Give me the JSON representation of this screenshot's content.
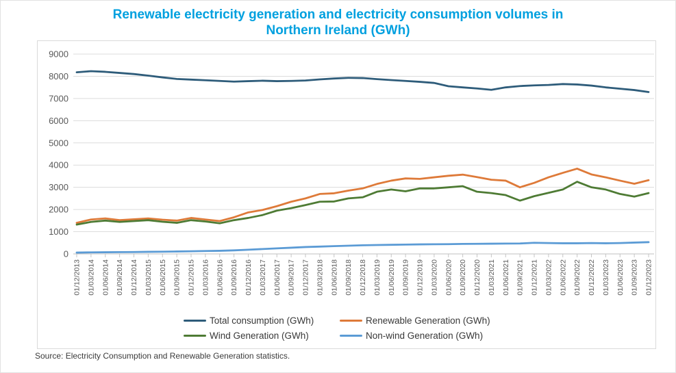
{
  "title": {
    "line1": "Renewable electricity generation and electricity consumption volumes in",
    "line2": "Northern Ireland (GWh)"
  },
  "source": "Source: Electricity Consumption and Renewable Generation statistics.",
  "chart_data": {
    "type": "line",
    "title": "Renewable electricity generation and electricity consumption volumes in Northern Ireland (GWh)",
    "xlabel": "",
    "ylabel": "",
    "ylim": [
      0,
      9000
    ],
    "y_ticks": [
      0,
      1000,
      2000,
      3000,
      4000,
      5000,
      6000,
      7000,
      8000,
      9000
    ],
    "grid": "horizontal",
    "legend_position": "bottom",
    "x_tick_labels": [
      "01/12/2013",
      "01/03/2014",
      "01/06/2014",
      "01/09/2014",
      "01/12/2014",
      "01/03/2015",
      "01/06/2015",
      "01/09/2015",
      "01/12/2015",
      "01/03/2016",
      "01/06/2016",
      "01/09/2016",
      "01/12/2016",
      "01/03/2017",
      "01/06/2017",
      "01/09/2017",
      "01/12/2017",
      "01/03/2018",
      "01/06/2018",
      "01/09/2018",
      "01/12/2018",
      "01/03/2019",
      "01/06/2019",
      "01/09/2019",
      "01/12/2019",
      "01/03/2020",
      "01/06/2020",
      "01/09/2020",
      "01/12/2020",
      "01/03/2021",
      "01/06/2021",
      "01/09/2021",
      "01/12/2021",
      "01/03/2022",
      "01/06/2022",
      "01/09/2022",
      "01/12/2022",
      "01/03/2023",
      "01/06/2023",
      "01/09/2023",
      "01/12/2023"
    ],
    "series": [
      {
        "name": "Total consumption (GWh)",
        "color": "#2E5C7A",
        "values": [
          8180,
          8230,
          8200,
          8150,
          8100,
          8030,
          7950,
          7880,
          7850,
          7820,
          7790,
          7760,
          7780,
          7800,
          7780,
          7790,
          7810,
          7860,
          7900,
          7930,
          7920,
          7870,
          7830,
          7790,
          7750,
          7700,
          7550,
          7500,
          7450,
          7390,
          7500,
          7560,
          7590,
          7610,
          7650,
          7630,
          7580,
          7500,
          7440,
          7380,
          7290
        ]
      },
      {
        "name": "Renewable Generation (GWh)",
        "color": "#DE7A39",
        "values": [
          1400,
          1550,
          1600,
          1520,
          1560,
          1600,
          1540,
          1500,
          1620,
          1550,
          1480,
          1650,
          1870,
          1980,
          2150,
          2350,
          2500,
          2700,
          2730,
          2850,
          2950,
          3150,
          3300,
          3400,
          3380,
          3450,
          3520,
          3570,
          3460,
          3340,
          3300,
          3000,
          3200,
          3450,
          3650,
          3840,
          3580,
          3450,
          3300,
          3160,
          3320
        ]
      },
      {
        "name": "Wind Generation (GWh)",
        "color": "#4E7B34",
        "values": [
          1320,
          1440,
          1500,
          1440,
          1480,
          1520,
          1450,
          1400,
          1520,
          1460,
          1380,
          1520,
          1620,
          1750,
          1950,
          2060,
          2200,
          2350,
          2360,
          2500,
          2550,
          2800,
          2900,
          2820,
          2950,
          2950,
          3000,
          3050,
          2800,
          2740,
          2650,
          2400,
          2600,
          2750,
          2900,
          3250,
          3000,
          2900,
          2700,
          2580,
          2740
        ]
      },
      {
        "name": "Non-wind Generation (GWh)",
        "color": "#5B9BD5",
        "values": [
          60,
          70,
          75,
          80,
          85,
          95,
          100,
          110,
          120,
          130,
          140,
          160,
          190,
          220,
          250,
          280,
          310,
          330,
          350,
          370,
          390,
          400,
          410,
          420,
          430,
          435,
          440,
          450,
          455,
          460,
          465,
          470,
          500,
          490,
          480,
          480,
          490,
          480,
          490,
          510,
          530
        ]
      }
    ]
  }
}
